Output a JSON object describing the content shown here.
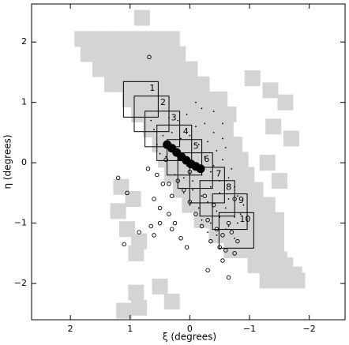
{
  "chart_data": {
    "type": "scatter",
    "xlabel": "ξ (degrees)",
    "ylabel": "η (degrees)",
    "xlim": [
      2.65,
      -2.6
    ],
    "ylim": [
      -2.6,
      2.63
    ],
    "xticks": [
      2,
      1,
      0,
      {
        "value": -1,
        "label": "−1"
      },
      {
        "value": -2,
        "label": "−2"
      }
    ],
    "yticks": [
      {
        "value": -2,
        "label": "−2"
      },
      {
        "value": -1,
        "label": "−1"
      },
      0,
      1,
      2
    ],
    "series": [
      {
        "marker": "square",
        "color": "#d4d4d4",
        "points": [
          [
            1.8,
            2.05
          ],
          [
            1.55,
            2.05
          ],
          [
            1.3,
            2.05
          ],
          [
            1.05,
            2.05
          ],
          [
            0.8,
            2.05
          ],
          [
            0.55,
            2.05
          ],
          [
            0.3,
            2.05
          ],
          [
            1.7,
            1.8
          ],
          [
            1.45,
            1.8
          ],
          [
            1.2,
            1.8
          ],
          [
            0.95,
            1.8
          ],
          [
            0.7,
            1.8
          ],
          [
            0.45,
            1.8
          ],
          [
            0.2,
            1.8
          ],
          [
            1.5,
            1.55
          ],
          [
            1.25,
            1.55
          ],
          [
            1.0,
            1.55
          ],
          [
            0.75,
            1.55
          ],
          [
            0.5,
            1.55
          ],
          [
            0.25,
            1.55
          ],
          [
            0.0,
            1.55
          ],
          [
            1.3,
            1.3
          ],
          [
            1.05,
            1.3
          ],
          [
            0.8,
            1.3
          ],
          [
            0.55,
            1.3
          ],
          [
            0.3,
            1.3
          ],
          [
            0.05,
            1.3
          ],
          [
            -0.2,
            1.3
          ],
          [
            1.0,
            1.05
          ],
          [
            0.75,
            1.05
          ],
          [
            0.5,
            1.05
          ],
          [
            0.25,
            1.05
          ],
          [
            0.0,
            1.05
          ],
          [
            -0.25,
            1.05
          ],
          [
            -0.5,
            1.05
          ],
          [
            0.85,
            0.8
          ],
          [
            0.6,
            0.8
          ],
          [
            0.35,
            0.8
          ],
          [
            0.1,
            0.8
          ],
          [
            -0.15,
            0.8
          ],
          [
            -0.4,
            0.8
          ],
          [
            -0.65,
            0.8
          ],
          [
            0.65,
            0.55
          ],
          [
            0.4,
            0.55
          ],
          [
            0.15,
            0.55
          ],
          [
            -0.1,
            0.55
          ],
          [
            -0.35,
            0.55
          ],
          [
            -0.6,
            0.55
          ],
          [
            0.5,
            0.3
          ],
          [
            0.25,
            0.3
          ],
          [
            0.0,
            0.3
          ],
          [
            -0.25,
            0.3
          ],
          [
            -0.5,
            0.3
          ],
          [
            -0.75,
            0.3
          ],
          [
            0.4,
            0.05
          ],
          [
            0.15,
            0.05
          ],
          [
            -0.1,
            0.05
          ],
          [
            -0.35,
            0.05
          ],
          [
            -0.6,
            0.05
          ],
          [
            -0.85,
            0.05
          ],
          [
            0.3,
            -0.2
          ],
          [
            0.05,
            -0.2
          ],
          [
            -0.2,
            -0.2
          ],
          [
            -0.45,
            -0.2
          ],
          [
            -0.7,
            -0.2
          ],
          [
            -0.95,
            -0.2
          ],
          [
            0.15,
            -0.45
          ],
          [
            -0.1,
            -0.45
          ],
          [
            -0.35,
            -0.45
          ],
          [
            -0.6,
            -0.45
          ],
          [
            -0.85,
            -0.45
          ],
          [
            -1.1,
            -0.45
          ],
          [
            0.0,
            -0.7
          ],
          [
            -0.25,
            -0.7
          ],
          [
            -0.5,
            -0.7
          ],
          [
            -0.75,
            -0.7
          ],
          [
            -1.0,
            -0.7
          ],
          [
            -1.25,
            -0.7
          ],
          [
            -0.2,
            -0.95
          ],
          [
            -0.45,
            -0.95
          ],
          [
            -0.7,
            -0.95
          ],
          [
            -0.95,
            -0.95
          ],
          [
            -1.2,
            -0.95
          ],
          [
            -1.45,
            -0.95
          ],
          [
            -0.45,
            -1.2
          ],
          [
            -0.7,
            -1.2
          ],
          [
            -0.95,
            -1.2
          ],
          [
            -1.2,
            -1.2
          ],
          [
            -1.45,
            -1.2
          ],
          [
            -0.7,
            -1.45
          ],
          [
            -0.95,
            -1.45
          ],
          [
            -1.2,
            -1.45
          ],
          [
            -1.45,
            -1.45
          ],
          [
            -1.1,
            -1.7
          ],
          [
            -1.35,
            -1.7
          ],
          [
            -1.6,
            -1.7
          ],
          [
            -1.3,
            -1.95
          ],
          [
            -1.55,
            -1.95
          ],
          [
            -1.8,
            -1.95
          ],
          [
            0.8,
            2.4
          ],
          [
            -1.05,
            1.4
          ],
          [
            -1.35,
            1.2
          ],
          [
            -1.6,
            1.0
          ],
          [
            -1.4,
            0.6
          ],
          [
            -1.7,
            0.4
          ],
          [
            -1.3,
            0.0
          ],
          [
            -1.5,
            -0.3
          ],
          [
            1.15,
            -0.4
          ],
          [
            0.95,
            -0.6
          ],
          [
            1.2,
            -0.8
          ],
          [
            1.05,
            -1.1
          ],
          [
            0.85,
            -1.3
          ],
          [
            0.9,
            -1.5
          ],
          [
            0.3,
            -2.3
          ],
          [
            0.85,
            -2.4
          ],
          [
            0.5,
            -2.05
          ],
          [
            0.9,
            -2.15
          ],
          [
            1.1,
            -2.45
          ],
          [
            -1.1,
            -0.95
          ],
          [
            -1.3,
            -0.7
          ],
          [
            -1.5,
            -1.6
          ],
          [
            -1.75,
            -1.85
          ]
        ]
      },
      {
        "marker": "dot",
        "color": "#000000",
        "points": [
          [
            0.35,
            0.75
          ],
          [
            0.2,
            0.7
          ],
          [
            0.05,
            0.8
          ],
          [
            -0.1,
            0.6
          ],
          [
            -0.25,
            0.65
          ],
          [
            -0.4,
            0.5
          ],
          [
            -0.55,
            0.4
          ],
          [
            0.45,
            0.45
          ],
          [
            0.3,
            0.5
          ],
          [
            0.15,
            0.4
          ],
          [
            0.0,
            0.45
          ],
          [
            -0.15,
            0.3
          ],
          [
            -0.3,
            0.35
          ],
          [
            -0.45,
            0.2
          ],
          [
            -0.6,
            0.25
          ],
          [
            0.5,
            0.15
          ],
          [
            0.35,
            0.2
          ],
          [
            0.2,
            0.05
          ],
          [
            0.05,
            -0.05
          ],
          [
            -0.1,
            0.0
          ],
          [
            -0.25,
            0.1
          ],
          [
            -0.4,
            -0.05
          ],
          [
            -0.55,
            0.05
          ],
          [
            -0.7,
            -0.1
          ],
          [
            0.25,
            -0.2
          ],
          [
            0.1,
            -0.25
          ],
          [
            -0.05,
            -0.3
          ],
          [
            -0.2,
            -0.2
          ],
          [
            -0.35,
            -0.15
          ],
          [
            -0.5,
            -0.3
          ],
          [
            -0.65,
            -0.25
          ],
          [
            -0.75,
            -0.4
          ],
          [
            0.1,
            -0.5
          ],
          [
            -0.05,
            -0.45
          ],
          [
            -0.2,
            -0.55
          ],
          [
            -0.35,
            -0.4
          ],
          [
            -0.5,
            -0.5
          ],
          [
            -0.65,
            -0.6
          ],
          [
            -0.8,
            -0.55
          ],
          [
            -0.9,
            -0.7
          ],
          [
            0.0,
            -0.7
          ],
          [
            -0.15,
            -0.75
          ],
          [
            -0.3,
            -0.65
          ],
          [
            -0.45,
            -0.8
          ],
          [
            -0.6,
            -0.75
          ],
          [
            -0.75,
            -0.9
          ],
          [
            -0.85,
            -0.85
          ],
          [
            -0.2,
            -0.95
          ],
          [
            -0.35,
            -1.0
          ],
          [
            -0.5,
            -0.9
          ],
          [
            -0.65,
            -1.05
          ],
          [
            -0.8,
            -1.0
          ],
          [
            -0.3,
            -1.15
          ],
          [
            -0.45,
            -1.2
          ],
          [
            -0.6,
            -1.1
          ],
          [
            -0.75,
            -1.25
          ],
          [
            0.6,
            0.55
          ],
          [
            0.55,
            0.3
          ],
          [
            0.4,
            0.1
          ],
          [
            0.65,
            0.7
          ],
          [
            -0.1,
            1.0
          ],
          [
            -0.4,
            0.85
          ],
          [
            -0.2,
            0.9
          ],
          [
            -0.55,
            0.65
          ]
        ]
      },
      {
        "marker": "circle",
        "color": "#000000",
        "points": [
          [
            1.2,
            -0.25
          ],
          [
            1.05,
            -0.5
          ],
          [
            1.1,
            -1.35
          ],
          [
            0.7,
            -0.1
          ],
          [
            0.55,
            -0.2
          ],
          [
            0.45,
            -0.35
          ],
          [
            0.4,
            0.05
          ],
          [
            0.6,
            -0.6
          ],
          [
            0.5,
            -0.75
          ],
          [
            0.3,
            -0.55
          ],
          [
            0.35,
            -0.85
          ],
          [
            0.2,
            -0.3
          ],
          [
            0.1,
            -0.45
          ],
          [
            0.25,
            -1.0
          ],
          [
            0.0,
            -0.65
          ],
          [
            -0.1,
            -0.85
          ],
          [
            0.3,
            -1.1
          ],
          [
            0.15,
            -1.25
          ],
          [
            -0.2,
            -1.05
          ],
          [
            -0.3,
            -0.95
          ],
          [
            -0.45,
            -1.1
          ],
          [
            0.05,
            -1.4
          ],
          [
            -0.35,
            -1.3
          ],
          [
            -0.55,
            -1.2
          ],
          [
            -0.65,
            -1.0
          ],
          [
            -0.7,
            -1.15
          ],
          [
            -0.8,
            -1.3
          ],
          [
            -0.6,
            -1.45
          ],
          [
            -0.5,
            -1.4
          ],
          [
            -0.75,
            -1.5
          ],
          [
            0.35,
            -0.35
          ],
          [
            0.0,
            -0.15
          ],
          [
            -0.25,
            -0.55
          ],
          [
            -0.4,
            -0.7
          ],
          [
            -0.3,
            -1.78
          ],
          [
            -0.55,
            -1.62
          ],
          [
            0.65,
            -1.05
          ],
          [
            0.6,
            -1.2
          ],
          [
            0.68,
            1.75
          ],
          [
            -0.75,
            -0.6
          ],
          [
            0.85,
            -1.15
          ],
          [
            0.5,
            -1.0
          ],
          [
            -0.65,
            -1.9
          ]
        ]
      },
      {
        "marker": "blob",
        "color": "#000000",
        "points": [
          [
            0.38,
            0.3
          ],
          [
            0.3,
            0.24
          ],
          [
            0.22,
            0.17
          ],
          [
            0.14,
            0.1
          ],
          [
            0.06,
            0.04
          ],
          [
            -0.02,
            -0.02
          ],
          [
            -0.1,
            -0.06
          ],
          [
            -0.18,
            -0.1
          ]
        ]
      }
    ],
    "boxes": [
      {
        "label": "1",
        "x": 0.82,
        "y": 1.05
      },
      {
        "label": "2",
        "x": 0.64,
        "y": 0.81
      },
      {
        "label": "3",
        "x": 0.46,
        "y": 0.56
      },
      {
        "label": "4",
        "x": 0.26,
        "y": 0.33
      },
      {
        "label": "5",
        "x": 0.09,
        "y": 0.09
      },
      {
        "label": "6",
        "x": -0.09,
        "y": -0.13
      },
      {
        "label": "7",
        "x": -0.29,
        "y": -0.37
      },
      {
        "label": "8",
        "x": -0.46,
        "y": -0.59
      },
      {
        "label": "9",
        "x": -0.67,
        "y": -0.81
      },
      {
        "label": "10",
        "x": -0.78,
        "y": -1.12
      }
    ]
  }
}
